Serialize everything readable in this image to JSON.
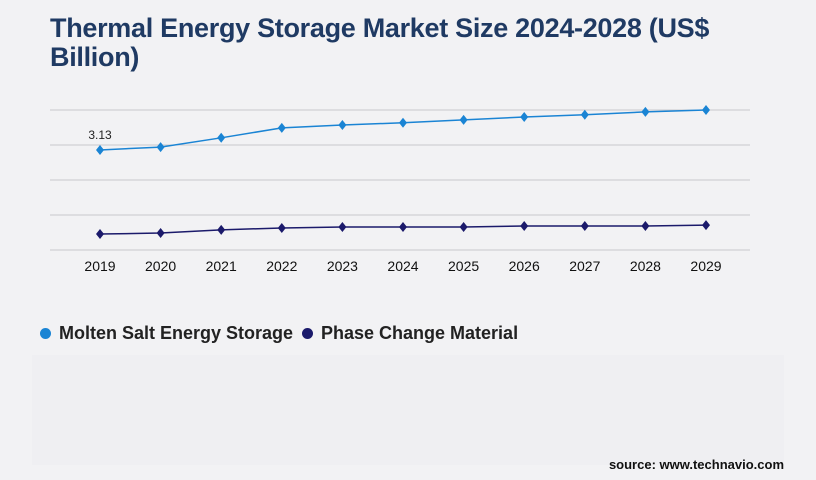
{
  "title": "Thermal Energy Storage Market Size 2024-2028 (US$ Billion)",
  "source": "source: www.technavio.com",
  "chart_data": {
    "type": "line",
    "title": "Thermal Energy Storage Market Size 2024-2028 (US$ Billion)",
    "categories": [
      "2019",
      "2020",
      "2021",
      "2022",
      "2023",
      "2024",
      "2025",
      "2026",
      "2027",
      "2028",
      "2029"
    ],
    "ylim": [
      0,
      4.38
    ],
    "grid": true,
    "legend": "bottom-left",
    "series": [
      {
        "name": "Molten Salt Energy Storage",
        "color": "#1a84d4",
        "values": [
          3.13,
          3.22,
          3.51,
          3.82,
          3.91,
          3.98,
          4.07,
          4.16,
          4.23,
          4.32,
          4.38
        ]
      },
      {
        "name": "Phase Change Material",
        "color": "#1b1a6b",
        "values": [
          0.5,
          0.53,
          0.63,
          0.69,
          0.72,
          0.72,
          0.72,
          0.75,
          0.75,
          0.75,
          0.78
        ]
      }
    ],
    "annotations": [
      {
        "series": 0,
        "index": 0,
        "text": "3.13"
      }
    ]
  }
}
